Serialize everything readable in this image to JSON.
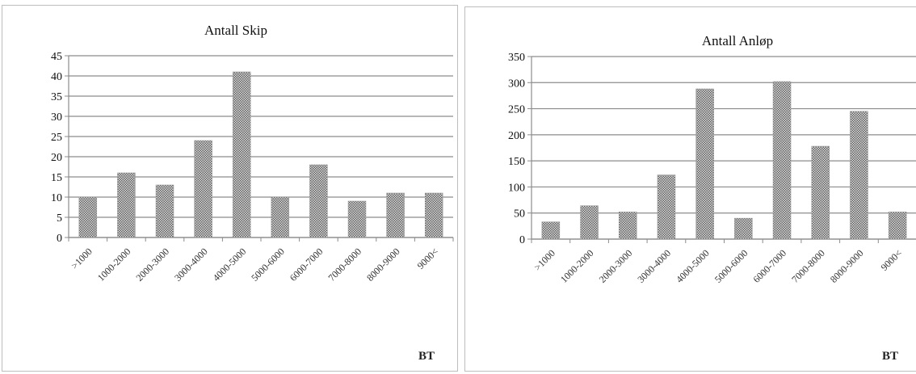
{
  "chart_data": [
    {
      "type": "bar",
      "title": "Antall Skip",
      "xlabel": "BT",
      "ylabel": "",
      "categories": [
        ">1000",
        "1000-2000",
        "2000-3000",
        "3000-4000",
        "4000-5000",
        "5000-6000",
        "6000-7000",
        "7000-8000",
        "8000-9000",
        "9000<"
      ],
      "values": [
        10,
        16,
        13,
        24,
        41,
        10,
        18,
        9,
        11,
        11
      ],
      "ylim": [
        0,
        45
      ],
      "yticks": [
        0,
        5,
        10,
        15,
        20,
        25,
        30,
        35,
        40,
        45
      ],
      "grid": true,
      "legend": "none",
      "bar_fill": "crosshatch grey"
    },
    {
      "type": "bar",
      "title": "Antall Anløp",
      "xlabel": "BT",
      "ylabel": "",
      "categories": [
        ">1000",
        "1000-2000",
        "2000-3000",
        "3000-4000",
        "4000-5000",
        "5000-6000",
        "6000-7000",
        "7000-8000",
        "8000-9000",
        "9000<"
      ],
      "values": [
        33,
        64,
        52,
        123,
        288,
        40,
        302,
        178,
        245,
        52
      ],
      "ylim": [
        0,
        350
      ],
      "yticks": [
        0,
        50,
        100,
        150,
        200,
        250,
        300,
        350
      ],
      "grid": true,
      "legend": "none",
      "bar_fill": "crosshatch grey"
    }
  ],
  "colors": {
    "grid": "#8c8c8c",
    "bar_dark": "#5f5f5f",
    "bar_light": "#dcdcdc"
  }
}
